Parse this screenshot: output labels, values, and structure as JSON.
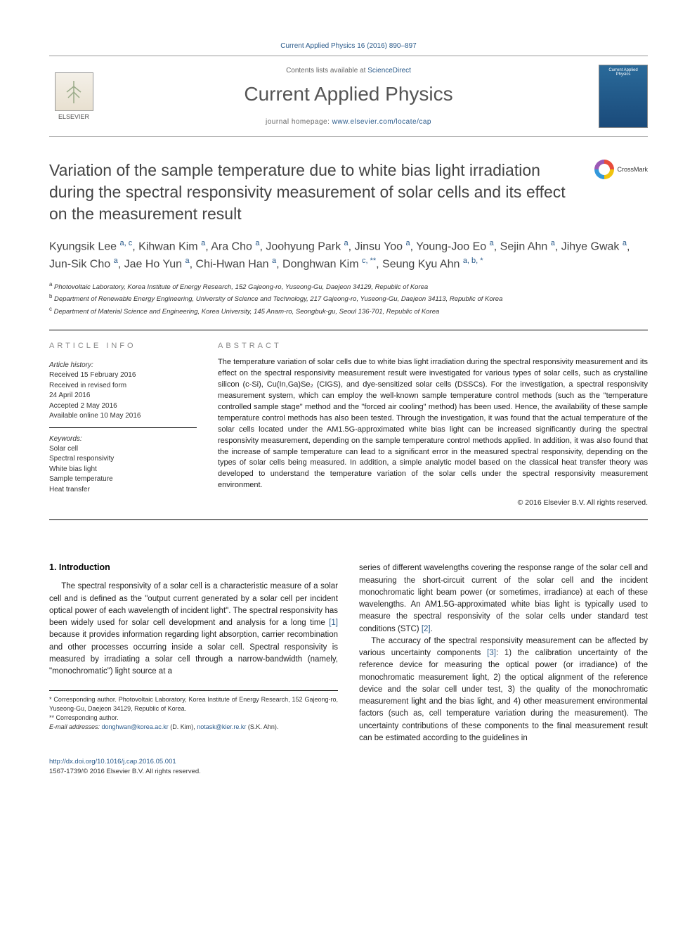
{
  "citation": "Current Applied Physics 16 (2016) 890–897",
  "masthead": {
    "publisherName": "ELSEVIER",
    "contentsLine": "Contents lists available at ",
    "contentsLink": "ScienceDirect",
    "journalName": "Current Applied Physics",
    "homepagePrefix": "journal homepage: ",
    "homepageUrl": "www.elsevier.com/locate/cap",
    "coverTitle": "Current Applied Physics"
  },
  "crossmark": {
    "label": "CrossMark"
  },
  "title": "Variation of the sample temperature due to white bias light irradiation during the spectral responsivity measurement of solar cells and its effect on the measurement result",
  "authorsHtml": "Kyungsik Lee <sup>a, c</sup>, Kihwan Kim <sup>a</sup>, Ara Cho <sup>a</sup>, Joohyung Park <sup>a</sup>, Jinsu Yoo <sup>a</sup>, Young-Joo Eo <sup>a</sup>, Sejin Ahn <sup>a</sup>, Jihye Gwak <sup>a</sup>, Jun-Sik Cho <sup>a</sup>, Jae Ho Yun <sup>a</sup>, Chi-Hwan Han <sup>a</sup>, Donghwan Kim <sup>c, **</sup>, Seung Kyu Ahn <sup>a, b, *</sup>",
  "affiliations": [
    {
      "sup": "a",
      "text": "Photovoltaic Laboratory, Korea Institute of Energy Research, 152 Gajeong-ro, Yuseong-Gu, Daejeon 34129, Republic of Korea"
    },
    {
      "sup": "b",
      "text": "Department of Renewable Energy Engineering, University of Science and Technology, 217 Gajeong-ro, Yuseong-Gu, Daejeon 34113, Republic of Korea"
    },
    {
      "sup": "c",
      "text": "Department of Material Science and Engineering, Korea University, 145 Anam-ro, Seongbuk-gu, Seoul 136-701, Republic of Korea"
    }
  ],
  "articleInfo": {
    "heading": "ARTICLE INFO",
    "historyHeading": "Article history:",
    "history": [
      "Received 15 February 2016",
      "Received in revised form",
      "24 April 2016",
      "Accepted 2 May 2016",
      "Available online 10 May 2016"
    ],
    "keywordsHeading": "Keywords:",
    "keywords": [
      "Solar cell",
      "Spectral responsivity",
      "White bias light",
      "Sample temperature",
      "Heat transfer"
    ]
  },
  "abstract": {
    "heading": "ABSTRACT",
    "text": "The temperature variation of solar cells due to white bias light irradiation during the spectral responsivity measurement and its effect on the spectral responsivity measurement result were investigated for various types of solar cells, such as crystalline silicon (c-Si), Cu(In,Ga)Se₂ (CIGS), and dye-sensitized solar cells (DSSCs). For the investigation, a spectral responsivity measurement system, which can employ the well-known sample temperature control methods (such as the \"temperature controlled sample stage\" method and the \"forced air cooling\" method) has been used. Hence, the availability of these sample temperature control methods has also been tested. Through the investigation, it was found that the actual temperature of the solar cells located under the AM1.5G-approximated white bias light can be increased significantly during the spectral responsivity measurement, depending on the sample temperature control methods applied. In addition, it was also found that the increase of sample temperature can lead to a significant error in the measured spectral responsivity, depending on the types of solar cells being measured. In addition, a simple analytic model based on the classical heat transfer theory was developed to understand the temperature variation of the solar cells under the spectral responsivity measurement environment.",
    "copyright": "© 2016 Elsevier B.V. All rights reserved."
  },
  "body": {
    "section1Heading": "1. Introduction",
    "para1": "The spectral responsivity of a solar cell is a characteristic measure of a solar cell and is defined as the \"output current generated by a solar cell per incident optical power of each wavelength of incident light\". The spectral responsivity has been widely used for solar cell development and analysis for a long time [1] because it provides information regarding light absorption, carrier recombination and other processes occurring inside a solar cell. Spectral responsivity is measured by irradiating a solar cell through a narrow-bandwidth (namely, \"monochromatic\") light source at a",
    "para2": "series of different wavelengths covering the response range of the solar cell and measuring the short-circuit current of the solar cell and the incident monochromatic light beam power (or sometimes, irradiance) at each of these wavelengths. An AM1.5G-approximated white bias light is typically used to measure the spectral responsivity of the solar cells under standard test conditions (STC) [2].",
    "para3": "The accuracy of the spectral responsivity measurement can be affected by various uncertainty components [3]: 1) the calibration uncertainty of the reference device for measuring the optical power (or irradiance) of the monochromatic measurement light, 2) the optical alignment of the reference device and the solar cell under test, 3) the quality of the monochromatic measurement light and the bias light, and 4) other measurement environmental factors (such as, cell temperature variation during the measurement). The uncertainty contributions of these components to the final measurement result can be estimated according to the guidelines in",
    "refs": {
      "r1": "[1]",
      "r2": "[2]",
      "r3": "[3]"
    }
  },
  "footnotes": {
    "corr1": "* Corresponding author. Photovoltaic Laboratory, Korea Institute of Energy Research, 152 Gajeong-ro, Yuseong-Gu, Daejeon 34129, Republic of Korea.",
    "corr2": "** Corresponding author.",
    "emailLabel": "E-mail addresses: ",
    "email1": "donghwan@korea.ac.kr",
    "email1suffix": " (D. Kim), ",
    "email2": "notask@kier.re.kr",
    "email2suffix": " (S.K. Ahn)."
  },
  "footer": {
    "doi": "http://dx.doi.org/10.1016/j.cap.2016.05.001",
    "issn": "1567-1739/© 2016 Elsevier B.V. All rights reserved."
  },
  "colors": {
    "link": "#2a5a8a",
    "heading": "#888888",
    "bodyText": "#222222",
    "titleText": "#444444"
  }
}
